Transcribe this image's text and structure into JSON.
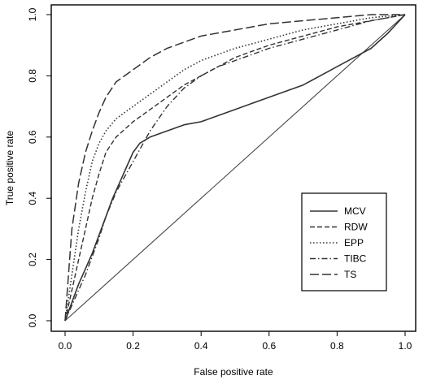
{
  "chart_data": {
    "type": "line",
    "title": "",
    "xlabel": "False positive rate",
    "ylabel": "True positive rate",
    "xlim": [
      0,
      1
    ],
    "ylim": [
      0,
      1
    ],
    "xticks": [
      "0.0",
      "0.2",
      "0.4",
      "0.6",
      "0.8",
      "1.0"
    ],
    "yticks": [
      "0.0",
      "0.2",
      "0.4",
      "0.6",
      "0.8",
      "1.0"
    ],
    "grid": false,
    "legend_position": "center-right",
    "series": [
      {
        "name": "MCV",
        "dash": "solid",
        "points": [
          [
            0,
            0
          ],
          [
            0.02,
            0.06
          ],
          [
            0.04,
            0.12
          ],
          [
            0.06,
            0.17
          ],
          [
            0.08,
            0.22
          ],
          [
            0.1,
            0.28
          ],
          [
            0.12,
            0.34
          ],
          [
            0.14,
            0.4
          ],
          [
            0.16,
            0.45
          ],
          [
            0.18,
            0.5
          ],
          [
            0.2,
            0.55
          ],
          [
            0.22,
            0.58
          ],
          [
            0.25,
            0.6
          ],
          [
            0.3,
            0.62
          ],
          [
            0.35,
            0.64
          ],
          [
            0.4,
            0.65
          ],
          [
            0.45,
            0.67
          ],
          [
            0.5,
            0.69
          ],
          [
            0.55,
            0.71
          ],
          [
            0.6,
            0.73
          ],
          [
            0.65,
            0.75
          ],
          [
            0.7,
            0.77
          ],
          [
            0.75,
            0.8
          ],
          [
            0.8,
            0.83
          ],
          [
            0.85,
            0.86
          ],
          [
            0.9,
            0.89
          ],
          [
            0.95,
            0.94
          ],
          [
            1.0,
            1.0
          ]
        ]
      },
      {
        "name": "RDW",
        "dash": "dashed",
        "points": [
          [
            0,
            0
          ],
          [
            0.02,
            0.1
          ],
          [
            0.04,
            0.2
          ],
          [
            0.06,
            0.3
          ],
          [
            0.08,
            0.4
          ],
          [
            0.1,
            0.48
          ],
          [
            0.12,
            0.55
          ],
          [
            0.15,
            0.6
          ],
          [
            0.2,
            0.65
          ],
          [
            0.25,
            0.69
          ],
          [
            0.3,
            0.73
          ],
          [
            0.35,
            0.77
          ],
          [
            0.4,
            0.8
          ],
          [
            0.45,
            0.83
          ],
          [
            0.5,
            0.86
          ],
          [
            0.55,
            0.88
          ],
          [
            0.6,
            0.9
          ],
          [
            0.7,
            0.93
          ],
          [
            0.8,
            0.96
          ],
          [
            0.9,
            0.98
          ],
          [
            1.0,
            1.0
          ]
        ]
      },
      {
        "name": "EPP",
        "dash": "dotted",
        "points": [
          [
            0,
            0
          ],
          [
            0.02,
            0.15
          ],
          [
            0.04,
            0.3
          ],
          [
            0.06,
            0.42
          ],
          [
            0.08,
            0.52
          ],
          [
            0.1,
            0.58
          ],
          [
            0.12,
            0.62
          ],
          [
            0.15,
            0.66
          ],
          [
            0.2,
            0.7
          ],
          [
            0.25,
            0.74
          ],
          [
            0.3,
            0.78
          ],
          [
            0.35,
            0.82
          ],
          [
            0.4,
            0.85
          ],
          [
            0.45,
            0.87
          ],
          [
            0.5,
            0.89
          ],
          [
            0.6,
            0.92
          ],
          [
            0.7,
            0.95
          ],
          [
            0.8,
            0.97
          ],
          [
            0.9,
            0.99
          ],
          [
            1.0,
            1.0
          ]
        ]
      },
      {
        "name": "TIBC",
        "dash": "dash-dot",
        "points": [
          [
            0,
            0
          ],
          [
            0.02,
            0.05
          ],
          [
            0.04,
            0.1
          ],
          [
            0.06,
            0.15
          ],
          [
            0.08,
            0.21
          ],
          [
            0.1,
            0.27
          ],
          [
            0.12,
            0.34
          ],
          [
            0.15,
            0.42
          ],
          [
            0.2,
            0.52
          ],
          [
            0.25,
            0.62
          ],
          [
            0.3,
            0.7
          ],
          [
            0.35,
            0.76
          ],
          [
            0.4,
            0.8
          ],
          [
            0.45,
            0.83
          ],
          [
            0.5,
            0.85
          ],
          [
            0.6,
            0.89
          ],
          [
            0.7,
            0.92
          ],
          [
            0.8,
            0.95
          ],
          [
            0.9,
            0.98
          ],
          [
            1.0,
            1.0
          ]
        ]
      },
      {
        "name": "TS",
        "dash": "long-dash",
        "points": [
          [
            0,
            0
          ],
          [
            0.01,
            0.15
          ],
          [
            0.02,
            0.3
          ],
          [
            0.04,
            0.45
          ],
          [
            0.06,
            0.55
          ],
          [
            0.08,
            0.62
          ],
          [
            0.1,
            0.68
          ],
          [
            0.12,
            0.73
          ],
          [
            0.15,
            0.78
          ],
          [
            0.2,
            0.82
          ],
          [
            0.25,
            0.86
          ],
          [
            0.3,
            0.89
          ],
          [
            0.35,
            0.91
          ],
          [
            0.4,
            0.93
          ],
          [
            0.45,
            0.94
          ],
          [
            0.5,
            0.95
          ],
          [
            0.6,
            0.97
          ],
          [
            0.7,
            0.98
          ],
          [
            0.8,
            0.99
          ],
          [
            0.9,
            1.0
          ],
          [
            1.0,
            1.0
          ]
        ]
      }
    ],
    "reference_line": [
      [
        0,
        0
      ],
      [
        1,
        1
      ]
    ]
  }
}
